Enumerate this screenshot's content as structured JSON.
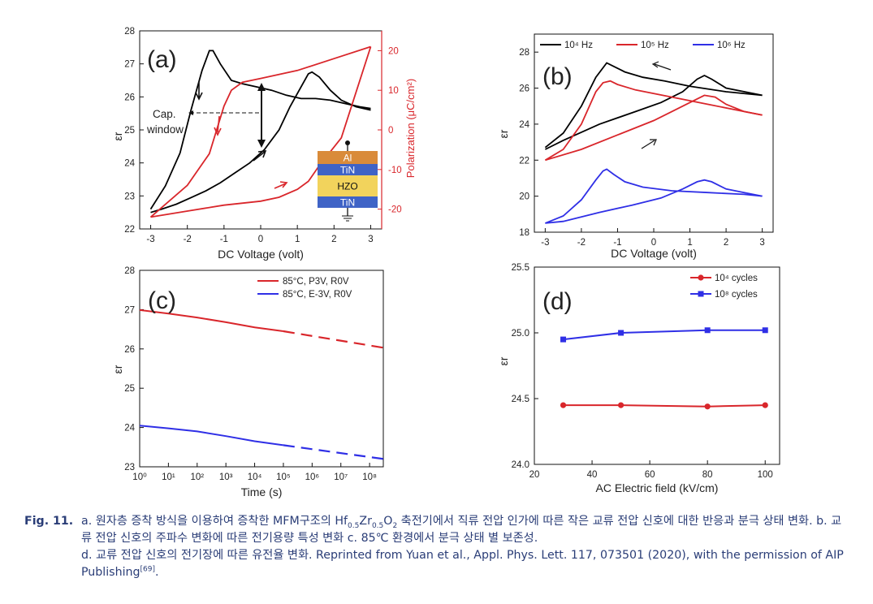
{
  "colors": {
    "black": "#000000",
    "red": "#d9262b",
    "blue": "#2f2fe6"
  },
  "panels": {
    "a": {
      "label": "(a)",
      "xlabel": "DC Voltage (volt)",
      "ylabel": "εr",
      "y2label": "Polarization (μC/cm²)",
      "xticks": [
        "-3",
        "-2",
        "-1",
        "0",
        "1",
        "2",
        "3"
      ],
      "yticks": [
        "22",
        "23",
        "24",
        "25",
        "26",
        "27",
        "28"
      ],
      "y2ticks": [
        "-20",
        "-10",
        "0",
        "10",
        "20"
      ],
      "annotation": [
        "Cap.",
        "window"
      ],
      "stack": [
        "Al",
        "TiN",
        "HZO",
        "TiN"
      ]
    },
    "b": {
      "label": "(b)",
      "xlabel": "DC Voltage (volt)",
      "ylabel": "εr",
      "xticks": [
        "-3",
        "-2",
        "-1",
        "0",
        "1",
        "2",
        "3"
      ],
      "yticks": [
        "18",
        "20",
        "22",
        "24",
        "26",
        "28"
      ],
      "legend": [
        "10⁴ Hz",
        "10⁵ Hz",
        "10⁶ Hz"
      ]
    },
    "c": {
      "label": "(c)",
      "xlabel": "Time (s)",
      "ylabel": "εr",
      "xticks": [
        "10⁰",
        "10¹",
        "10²",
        "10³",
        "10⁴",
        "10⁵",
        "10⁶",
        "10⁷",
        "10⁸"
      ],
      "yticks": [
        "23",
        "24",
        "25",
        "26",
        "27",
        "28"
      ],
      "legend": [
        "85°C, P3V, R0V",
        "85°C, E-3V, R0V"
      ]
    },
    "d": {
      "label": "(d)",
      "xlabel": "AC Electric field (kV/cm)",
      "ylabel": "εr",
      "xticks": [
        "20",
        "40",
        "60",
        "80",
        "100"
      ],
      "yticks": [
        "24.0",
        "24.5",
        "25.0",
        "25.5"
      ],
      "legend": [
        "10⁴ cycles",
        "10⁸ cycles"
      ]
    }
  },
  "chart_data": [
    {
      "type": "line",
      "panel": "a",
      "xlim": [
        -3.3,
        3.3
      ],
      "ylim": [
        22,
        28
      ],
      "y2lim": [
        -25,
        25
      ],
      "series": [
        {
          "axis": "left",
          "values_x": [
            -3,
            -2.6,
            -2.2,
            -1.9,
            -1.6,
            -1.4,
            -1.3,
            -1.1,
            -0.8,
            -0.5,
            -0.1,
            0.3,
            0.7,
            1.1,
            1.5,
            1.9,
            2.3,
            2.7,
            3
          ],
          "values_y": [
            22.6,
            23.3,
            24.3,
            25.6,
            26.8,
            27.4,
            27.4,
            27.0,
            26.5,
            26.4,
            26.3,
            26.2,
            26.05,
            25.95,
            25.95,
            25.9,
            25.8,
            25.7,
            25.65
          ]
        },
        {
          "axis": "left",
          "values_x": [
            3,
            2.6,
            2.2,
            1.9,
            1.6,
            1.4,
            1.3,
            1.1,
            0.8,
            0.5,
            0.1,
            -0.3,
            -0.7,
            -1.1,
            -1.5,
            -1.9,
            -2.3,
            -2.7,
            -3
          ],
          "values_y": [
            25.6,
            25.7,
            25.9,
            26.2,
            26.6,
            26.75,
            26.7,
            26.3,
            25.7,
            25.0,
            24.4,
            24.0,
            23.7,
            23.4,
            23.15,
            22.95,
            22.75,
            22.6,
            22.5
          ]
        },
        {
          "axis": "right",
          "values_x": [
            -3,
            -2,
            -1.4,
            -1.2,
            -1.0,
            -0.8,
            -0.5,
            0,
            1,
            2,
            3
          ],
          "values_y": [
            -22,
            -14,
            -6,
            0,
            6,
            10,
            12,
            13,
            15,
            18,
            21
          ]
        },
        {
          "axis": "right",
          "values_x": [
            3,
            2.2,
            1.6,
            1.3,
            1.0,
            0.5,
            0,
            -1,
            -2,
            -3
          ],
          "values_y": [
            21,
            -2,
            -9,
            -13,
            -15,
            -17,
            -18,
            -19,
            -20.5,
            -22
          ]
        }
      ]
    },
    {
      "type": "line",
      "panel": "b",
      "xlim": [
        -3.3,
        3.3
      ],
      "ylim": [
        18,
        29
      ],
      "series": [
        {
          "name": "10⁴ Hz",
          "values_x": [
            -3,
            -2.5,
            -2,
            -1.6,
            -1.3,
            -1.1,
            -0.8,
            -0.3,
            0.3,
            1,
            2,
            3
          ],
          "values_y": [
            22.7,
            23.5,
            25.0,
            26.6,
            27.4,
            27.2,
            26.9,
            26.6,
            26.4,
            26.1,
            25.8,
            25.6
          ]
        },
        {
          "name": "10⁴ Hz",
          "values_x": [
            3,
            2,
            1.6,
            1.4,
            1.2,
            0.8,
            0.2,
            -0.5,
            -1.5,
            -2.5,
            -3
          ],
          "values_y": [
            25.6,
            26.0,
            26.5,
            26.7,
            26.5,
            25.8,
            25.2,
            24.7,
            24.0,
            23.1,
            22.6
          ]
        },
        {
          "name": "10⁵ Hz",
          "values_x": [
            -3,
            -2.5,
            -2,
            -1.6,
            -1.4,
            -1.2,
            -1,
            -0.5,
            0.5,
            1.5,
            2.5,
            3
          ],
          "values_y": [
            22.0,
            22.6,
            24.0,
            25.8,
            26.3,
            26.4,
            26.2,
            25.9,
            25.5,
            25.1,
            24.7,
            24.5
          ]
        },
        {
          "name": "10⁵ Hz",
          "values_x": [
            3,
            2.5,
            2,
            1.7,
            1.4,
            1,
            0.5,
            0,
            -1,
            -2,
            -3
          ],
          "values_y": [
            24.5,
            24.7,
            25.1,
            25.5,
            25.6,
            25.2,
            24.7,
            24.2,
            23.4,
            22.6,
            22.0
          ]
        },
        {
          "name": "10⁶ Hz",
          "values_x": [
            -3,
            -2.5,
            -2,
            -1.6,
            -1.4,
            -1.3,
            -1.1,
            -0.8,
            -0.3,
            0.5,
            1.5,
            2.5,
            3
          ],
          "values_y": [
            18.5,
            18.9,
            19.8,
            20.9,
            21.4,
            21.5,
            21.2,
            20.8,
            20.5,
            20.3,
            20.2,
            20.1,
            20.0
          ]
        },
        {
          "name": "10⁶ Hz",
          "values_x": [
            3,
            2.5,
            2,
            1.6,
            1.4,
            1.2,
            0.8,
            0.2,
            -0.6,
            -1.5,
            -2.5,
            -3
          ],
          "values_y": [
            20.0,
            20.2,
            20.4,
            20.8,
            20.9,
            20.8,
            20.4,
            19.9,
            19.5,
            19.1,
            18.6,
            18.5
          ]
        }
      ]
    },
    {
      "type": "line",
      "panel": "c",
      "xscale": "log",
      "xlim": [
        1,
        300000000
      ],
      "ylim": [
        23,
        28
      ],
      "series": [
        {
          "name": "85°C, P3V, R0V",
          "style": "solid",
          "values_x": [
            1,
            10,
            100,
            1000,
            10000,
            100000
          ],
          "values_y": [
            26.99,
            26.9,
            26.8,
            26.68,
            26.55,
            26.45
          ]
        },
        {
          "name": "85°C, P3V, R0V",
          "style": "dashed",
          "values_x": [
            100000,
            300000000
          ],
          "values_y": [
            26.45,
            26.03
          ]
        },
        {
          "name": "85°C, E-3V, R0V",
          "style": "solid",
          "values_x": [
            1,
            10,
            100,
            1000,
            10000,
            100000
          ],
          "values_y": [
            24.05,
            23.98,
            23.9,
            23.78,
            23.65,
            23.55
          ]
        },
        {
          "name": "85°C, E-3V, R0V",
          "style": "dashed",
          "values_x": [
            100000,
            300000000
          ],
          "values_y": [
            23.55,
            23.2
          ]
        }
      ]
    },
    {
      "type": "line",
      "panel": "d",
      "xlim": [
        20,
        105
      ],
      "ylim": [
        24.0,
        25.5
      ],
      "series": [
        {
          "name": "10⁴ cycles",
          "marker": "circle",
          "x": [
            30,
            50,
            80,
            100
          ],
          "values": [
            24.45,
            24.45,
            24.44,
            24.45
          ]
        },
        {
          "name": "10⁸ cycles",
          "marker": "square",
          "x": [
            30,
            50,
            80,
            100
          ],
          "values": [
            24.95,
            25.0,
            25.02,
            25.02
          ]
        }
      ]
    }
  ],
  "caption": {
    "label": "Fig. 11.",
    "a_pre": "a. 원자층 증착 방식을 이용하여 증착한 MFM구조의 ",
    "formula_hf": "Hf",
    "formula_hf_sub": "0.5",
    "formula_zr": "Zr",
    "formula_zr_sub": "0.5",
    "formula_o": "O",
    "formula_o_sub": "2",
    "a_post": " 축전기에서 직류 전압 인가에 따른 작은 교류 전압 신호에 대한 반응과 분극 상태 변화. b. 교류 전압 신호의 주파수 변화에 따른 전기용량 특성 변화 c. 85℃ 환경에서 분극 상태 별 보존성.",
    "d_text": "d. 교류 전압 신호의 전기장에 따른 유전율 변화. Reprinted from Yuan et al., Appl. Phys. Lett. 117, 073501 (2020), with the permission of AIP Publishing",
    "ref": "[69]",
    "end": "."
  }
}
